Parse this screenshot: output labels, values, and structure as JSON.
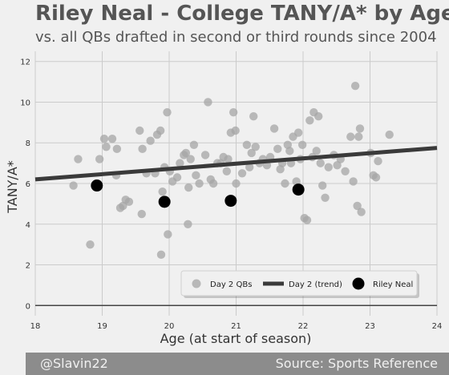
{
  "title": "Riley Neal - College TANY/A* by Age",
  "subtitle": "vs. all QBs drafted in second or third rounds since 2004",
  "footer": {
    "credit": "@Slavin22",
    "source": "Source: Sports Reference"
  },
  "colors": {
    "background": "#f0f0f0",
    "grid": "#cbcbcb",
    "day2_points": "#a6a6a6",
    "trend": "#3a3a3a",
    "highlight": "#000000",
    "footer_bg": "#8c8c8c"
  },
  "chart_data": {
    "type": "scatter",
    "xlabel": "Age (at start of season)",
    "ylabel": "TANY/A*",
    "xlim": [
      18,
      24
    ],
    "ylim": [
      -0.5,
      12.5
    ],
    "xticks": [
      18,
      19,
      20,
      21,
      22,
      23,
      24
    ],
    "yticks": [
      0,
      2,
      4,
      6,
      8,
      10,
      12
    ],
    "grid": true,
    "legend": {
      "placement": "lower-right",
      "entries": [
        "Day 2 QBs",
        "Day 2 (trend)",
        "Riley Neal"
      ]
    },
    "series": [
      {
        "name": "Day 2 QBs",
        "marker": "circle",
        "points": [
          [
            18.57,
            5.9
          ],
          [
            18.64,
            7.2
          ],
          [
            18.82,
            3.0
          ],
          [
            18.96,
            7.2
          ],
          [
            19.03,
            8.2
          ],
          [
            19.06,
            7.8
          ],
          [
            19.15,
            8.2
          ],
          [
            19.21,
            6.4
          ],
          [
            19.22,
            7.7
          ],
          [
            19.27,
            4.8
          ],
          [
            19.31,
            4.9
          ],
          [
            19.35,
            5.2
          ],
          [
            19.4,
            5.1
          ],
          [
            19.56,
            8.6
          ],
          [
            19.59,
            4.5
          ],
          [
            19.6,
            7.7
          ],
          [
            19.66,
            6.5
          ],
          [
            19.72,
            8.1
          ],
          [
            19.79,
            6.5
          ],
          [
            19.82,
            8.4
          ],
          [
            19.87,
            8.6
          ],
          [
            19.88,
            2.5
          ],
          [
            19.9,
            5.6
          ],
          [
            19.93,
            6.8
          ],
          [
            19.97,
            9.5
          ],
          [
            19.98,
            3.5
          ],
          [
            20.01,
            6.6
          ],
          [
            20.05,
            6.1
          ],
          [
            20.12,
            6.3
          ],
          [
            20.16,
            7.0
          ],
          [
            20.22,
            7.4
          ],
          [
            20.25,
            7.5
          ],
          [
            20.28,
            4.0
          ],
          [
            20.29,
            5.8
          ],
          [
            20.32,
            7.2
          ],
          [
            20.37,
            7.9
          ],
          [
            20.4,
            6.4
          ],
          [
            20.45,
            6.0
          ],
          [
            20.54,
            7.4
          ],
          [
            20.58,
            10.0
          ],
          [
            20.62,
            6.2
          ],
          [
            20.66,
            6.0
          ],
          [
            20.72,
            7.0
          ],
          [
            20.77,
            7.0
          ],
          [
            20.81,
            7.3
          ],
          [
            20.86,
            6.6
          ],
          [
            20.88,
            7.2
          ],
          [
            20.92,
            8.5
          ],
          [
            20.96,
            9.5
          ],
          [
            20.99,
            8.6
          ],
          [
            21.0,
            6.0
          ],
          [
            21.09,
            6.5
          ],
          [
            21.16,
            7.9
          ],
          [
            21.2,
            6.8
          ],
          [
            21.23,
            7.5
          ],
          [
            21.26,
            9.3
          ],
          [
            21.29,
            7.8
          ],
          [
            21.35,
            7.0
          ],
          [
            21.4,
            7.2
          ],
          [
            21.46,
            6.9
          ],
          [
            21.51,
            7.3
          ],
          [
            21.57,
            8.7
          ],
          [
            21.62,
            7.7
          ],
          [
            21.66,
            6.7
          ],
          [
            21.69,
            7.0
          ],
          [
            21.73,
            6.0
          ],
          [
            21.77,
            7.9
          ],
          [
            21.8,
            7.6
          ],
          [
            21.82,
            7.0
          ],
          [
            21.85,
            8.3
          ],
          [
            21.9,
            6.1
          ],
          [
            21.93,
            8.5
          ],
          [
            21.96,
            7.2
          ],
          [
            21.99,
            7.9
          ],
          [
            22.02,
            4.3
          ],
          [
            22.06,
            4.2
          ],
          [
            22.1,
            9.1
          ],
          [
            22.14,
            7.3
          ],
          [
            22.16,
            9.5
          ],
          [
            22.2,
            7.6
          ],
          [
            22.23,
            9.3
          ],
          [
            22.26,
            7.0
          ],
          [
            22.29,
            5.9
          ],
          [
            22.33,
            5.3
          ],
          [
            22.38,
            6.8
          ],
          [
            22.46,
            7.4
          ],
          [
            22.51,
            6.9
          ],
          [
            22.56,
            7.2
          ],
          [
            22.63,
            6.6
          ],
          [
            22.71,
            8.3
          ],
          [
            22.75,
            6.1
          ],
          [
            22.78,
            10.8
          ],
          [
            22.81,
            4.9
          ],
          [
            22.83,
            8.3
          ],
          [
            22.85,
            8.7
          ],
          [
            22.87,
            4.6
          ],
          [
            23.01,
            7.5
          ],
          [
            23.05,
            6.4
          ],
          [
            23.09,
            6.3
          ],
          [
            23.12,
            7.1
          ],
          [
            23.29,
            8.4
          ]
        ]
      },
      {
        "name": "Day 2 (trend)",
        "type": "line",
        "points": [
          [
            18,
            6.2
          ],
          [
            24,
            7.75
          ]
        ]
      },
      {
        "name": "Riley Neal",
        "marker": "circle",
        "points": [
          [
            18.92,
            5.9
          ],
          [
            19.93,
            5.1
          ],
          [
            20.92,
            5.15
          ],
          [
            21.93,
            5.7
          ]
        ]
      }
    ]
  }
}
